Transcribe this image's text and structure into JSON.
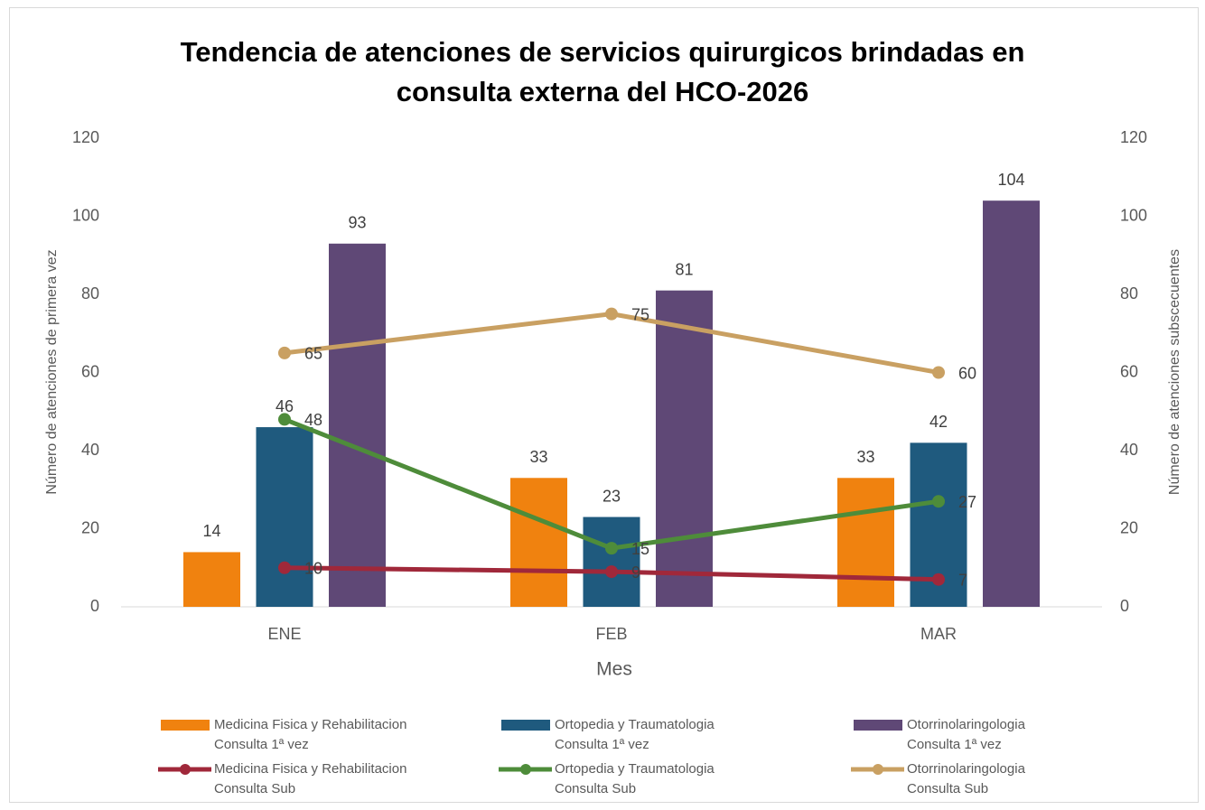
{
  "chart_data": {
    "type": "combo",
    "title": "Tendencia de atenciones de servicios quirurgicos brindadas en\nconsulta externa del HCO-2026",
    "x_label": "Mes",
    "y_label": "Número de atenciones de primera vez",
    "y2_label": "Número de atenciones subscecuentes",
    "categories": [
      "ENE",
      "FEB",
      "MAR"
    ],
    "ylim": [
      0,
      120
    ],
    "yticks": [
      0,
      20,
      40,
      60,
      80,
      100,
      120
    ],
    "y2lim": [
      0,
      120
    ],
    "y2ticks": [
      0,
      20,
      40,
      60,
      80,
      100,
      120
    ],
    "grid": false,
    "legend": "bottom",
    "series": [
      {
        "name": "Medicina Fisica y Rehabilitacion\nConsulta 1ª vez",
        "type": "bar",
        "color": "#F0820F",
        "values": [
          14,
          33,
          33
        ]
      },
      {
        "name": "Ortopedia y Traumatologia\nConsulta 1ª vez",
        "type": "bar",
        "color": "#1F5A7E",
        "values": [
          46,
          23,
          42
        ]
      },
      {
        "name": "Otorrinolaringologia\nConsulta 1ª vez",
        "type": "bar",
        "color": "#5F4876",
        "values": [
          93,
          81,
          104
        ]
      },
      {
        "name": "Medicina Fisica y Rehabilitacion\nConsulta Sub",
        "type": "line",
        "axis": "y2",
        "color": "#A0283A",
        "values": [
          10,
          9,
          7
        ]
      },
      {
        "name": "Ortopedia y Traumatologia\nConsulta Sub",
        "type": "line",
        "axis": "y2",
        "color": "#4E8C3A",
        "values": [
          48,
          15,
          27
        ]
      },
      {
        "name": "Otorrinolaringologia\nConsulta Sub",
        "type": "line",
        "axis": "y2",
        "color": "#C9A062",
        "values": [
          65,
          75,
          60
        ]
      }
    ]
  }
}
